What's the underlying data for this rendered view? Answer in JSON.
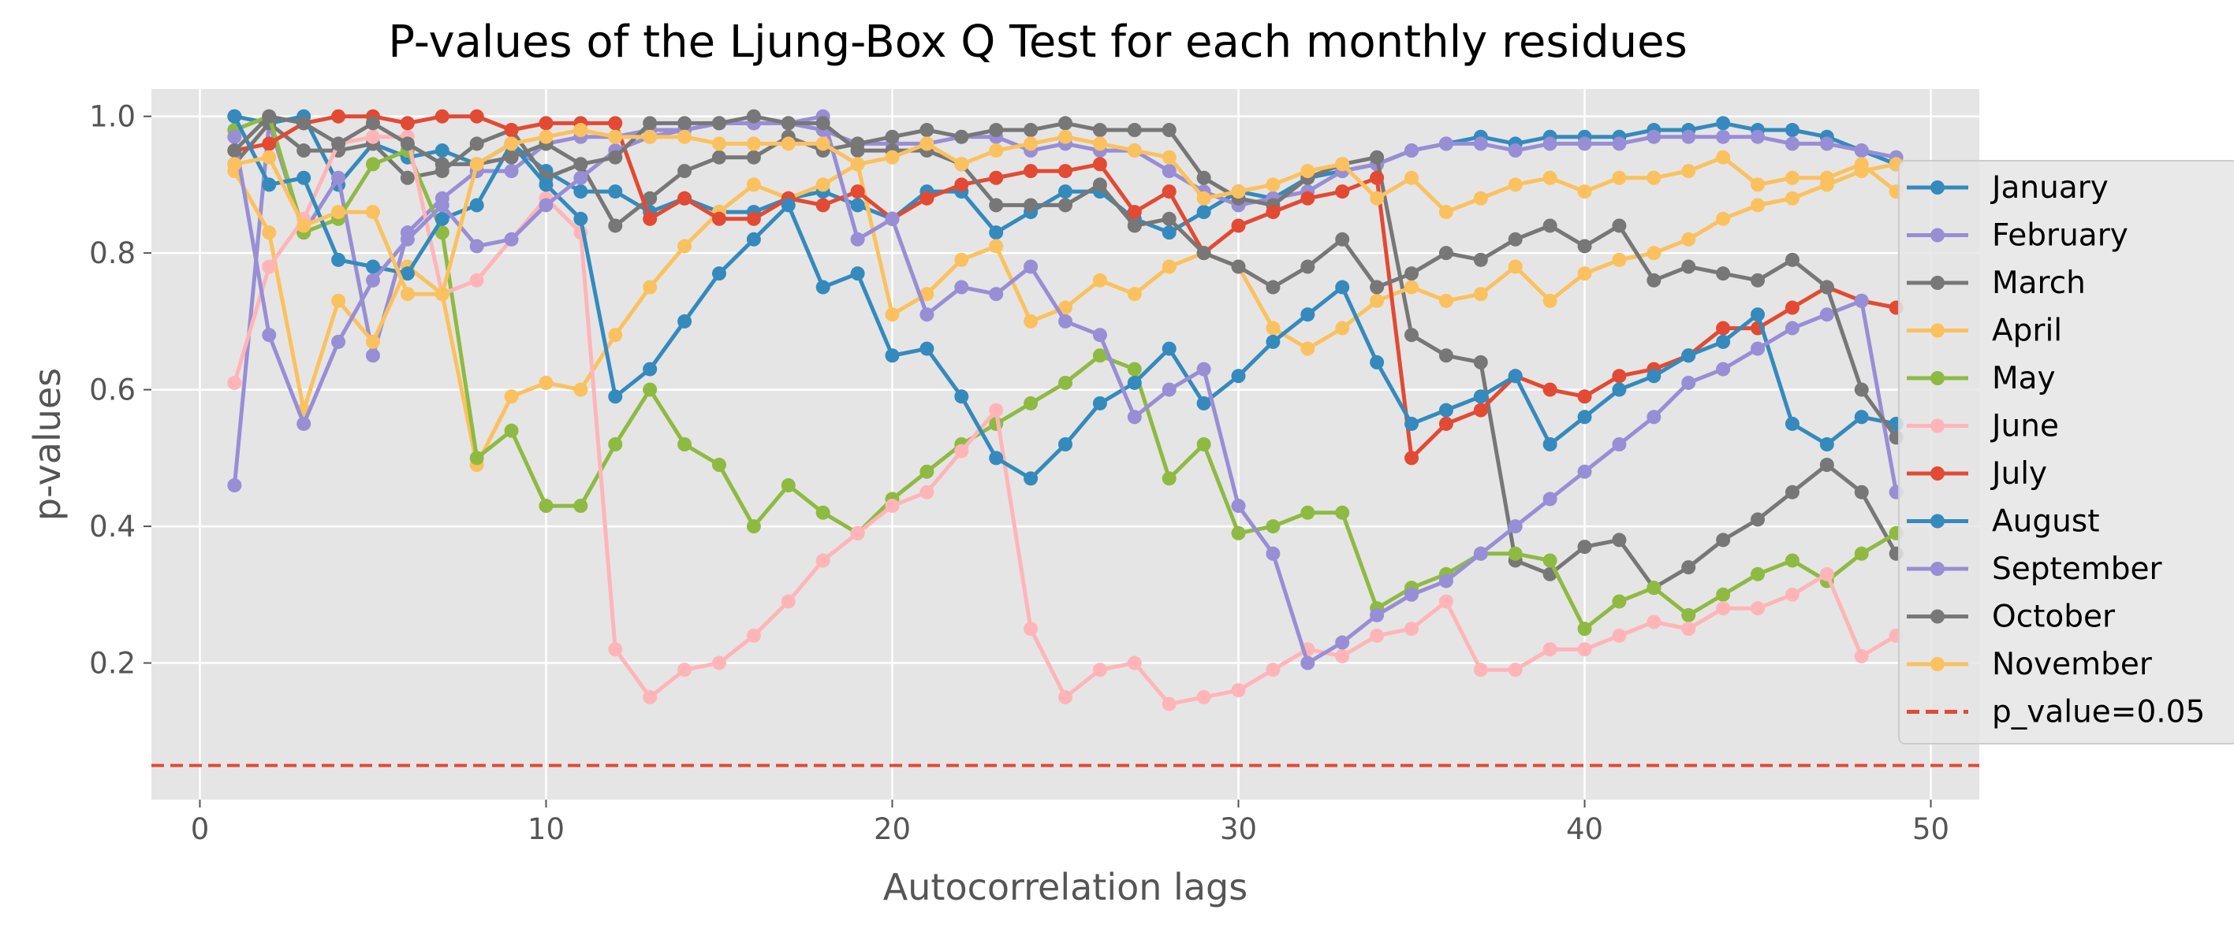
{
  "chart_data": {
    "type": "line",
    "title": "P-values of the Ljung-Box Q Test for each monthly residues",
    "xlabel": "Autocorrelation lags",
    "ylabel": "p-values",
    "xlim": [
      -1.4,
      51.4
    ],
    "ylim": [
      0.0,
      1.04
    ],
    "xticks": [
      0,
      10,
      20,
      30,
      40,
      50
    ],
    "yticks": [
      0.2,
      0.4,
      0.6,
      0.8,
      1.0
    ],
    "ytick_labels": [
      "0.2",
      "0.4",
      "0.6",
      "0.8",
      "1.0"
    ],
    "grid": true,
    "style": "ggplot",
    "legend_position": "center-right",
    "hline": {
      "y": 0.05,
      "label": "p_value=0.05",
      "color": "#E24A33",
      "style": "dashed"
    },
    "series": [
      {
        "name": "January",
        "color": "#348ABD",
        "values": [
          1.0,
          0.99,
          1.0,
          0.9,
          0.96,
          0.94,
          0.95,
          0.93,
          0.96,
          0.92,
          0.89,
          0.89,
          0.86,
          0.88,
          0.86,
          0.86,
          0.88,
          0.89,
          0.87,
          0.85,
          0.89,
          0.89,
          0.83,
          0.86,
          0.89,
          0.89,
          0.85,
          0.83,
          0.86,
          0.89,
          0.88,
          0.91,
          0.92,
          0.93,
          0.95,
          0.96,
          0.97,
          0.96,
          0.97,
          0.97,
          0.97,
          0.98,
          0.98,
          0.99,
          0.98,
          0.98,
          0.97,
          0.95,
          0.93
        ]
      },
      {
        "name": "February",
        "color": "#988ED5",
        "values": [
          0.46,
          0.99,
          0.83,
          0.91,
          0.65,
          0.83,
          0.88,
          0.92,
          0.92,
          0.96,
          0.97,
          0.97,
          0.98,
          0.98,
          0.99,
          0.99,
          0.99,
          0.98,
          0.96,
          0.96,
          0.96,
          0.97,
          0.97,
          0.95,
          0.96,
          0.95,
          0.95,
          0.92,
          0.89,
          0.87,
          0.88,
          0.89,
          0.92,
          0.93,
          0.95,
          0.96,
          0.96,
          0.95,
          0.96,
          0.96,
          0.96,
          0.97,
          0.97,
          0.97,
          0.97,
          0.96,
          0.96,
          0.95,
          0.94
        ]
      },
      {
        "name": "March",
        "color": "#777777",
        "values": [
          0.93,
          0.99,
          0.95,
          0.95,
          0.96,
          0.91,
          0.92,
          0.96,
          0.98,
          0.91,
          0.93,
          0.84,
          0.88,
          0.92,
          0.94,
          0.94,
          0.97,
          0.95,
          0.96,
          0.97,
          0.98,
          0.97,
          0.98,
          0.98,
          0.99,
          0.98,
          0.98,
          0.98,
          0.91,
          0.88,
          0.87,
          0.91,
          0.93,
          0.94,
          0.68,
          0.65,
          0.64,
          0.35,
          0.33,
          0.37,
          0.38,
          0.31,
          0.34,
          0.38,
          0.41,
          0.45,
          0.49,
          0.45,
          0.36
        ]
      },
      {
        "name": "April",
        "color": "#FBC15E",
        "values": [
          0.92,
          0.83,
          0.57,
          0.73,
          0.67,
          0.78,
          0.74,
          0.49,
          0.59,
          0.61,
          0.6,
          0.68,
          0.75,
          0.81,
          0.86,
          0.9,
          0.88,
          0.9,
          0.93,
          0.71,
          0.74,
          0.79,
          0.81,
          0.7,
          0.72,
          0.76,
          0.74,
          0.78,
          0.8,
          0.78,
          0.69,
          0.66,
          0.69,
          0.73,
          0.75,
          0.73,
          0.74,
          0.78,
          0.73,
          0.77,
          0.79,
          0.8,
          0.82,
          0.85,
          0.87,
          0.88,
          0.9,
          0.92,
          0.93
        ]
      },
      {
        "name": "May",
        "color": "#8EBA42",
        "values": [
          0.98,
          1.0,
          0.83,
          0.85,
          0.93,
          0.95,
          0.83,
          0.5,
          0.54,
          0.43,
          0.43,
          0.52,
          0.6,
          0.52,
          0.49,
          0.4,
          0.46,
          0.42,
          0.39,
          0.44,
          0.48,
          0.52,
          0.55,
          0.58,
          0.61,
          0.65,
          0.63,
          0.47,
          0.52,
          0.39,
          0.4,
          0.42,
          0.42,
          0.28,
          0.31,
          0.33,
          0.36,
          0.36,
          0.35,
          0.25,
          0.29,
          0.31,
          0.27,
          0.3,
          0.33,
          0.35,
          0.32,
          0.36,
          0.39
        ]
      },
      {
        "name": "June",
        "color": "#FFB5B8",
        "values": [
          0.61,
          0.78,
          0.85,
          0.96,
          0.97,
          0.97,
          0.74,
          0.76,
          0.82,
          0.88,
          0.83,
          0.22,
          0.15,
          0.19,
          0.2,
          0.24,
          0.29,
          0.35,
          0.39,
          0.43,
          0.45,
          0.51,
          0.57,
          0.25,
          0.15,
          0.19,
          0.2,
          0.14,
          0.15,
          0.16,
          0.19,
          0.22,
          0.21,
          0.24,
          0.25,
          0.29,
          0.19,
          0.19,
          0.22,
          0.22,
          0.24,
          0.26,
          0.25,
          0.28,
          0.28,
          0.3,
          0.33,
          0.21,
          0.24
        ]
      },
      {
        "name": "July",
        "color": "#E24A33",
        "values": [
          0.95,
          0.96,
          0.99,
          1.0,
          1.0,
          0.99,
          1.0,
          1.0,
          0.98,
          0.99,
          0.99,
          0.99,
          0.85,
          0.88,
          0.85,
          0.85,
          0.88,
          0.87,
          0.89,
          0.85,
          0.88,
          0.9,
          0.91,
          0.92,
          0.92,
          0.93,
          0.86,
          0.89,
          0.8,
          0.84,
          0.86,
          0.88,
          0.89,
          0.91,
          0.5,
          0.55,
          0.57,
          0.62,
          0.6,
          0.59,
          0.62,
          0.63,
          0.65,
          0.69,
          0.69,
          0.72,
          0.75,
          0.73,
          0.72
        ]
      },
      {
        "name": "August",
        "color": "#348ABD",
        "values": [
          1.0,
          0.9,
          0.91,
          0.79,
          0.78,
          0.77,
          0.85,
          0.87,
          0.96,
          0.9,
          0.85,
          0.59,
          0.63,
          0.7,
          0.77,
          0.82,
          0.87,
          0.75,
          0.77,
          0.65,
          0.66,
          0.59,
          0.5,
          0.47,
          0.52,
          0.58,
          0.61,
          0.66,
          0.58,
          0.62,
          0.67,
          0.71,
          0.75,
          0.64,
          0.55,
          0.57,
          0.59,
          0.62,
          0.52,
          0.56,
          0.6,
          0.62,
          0.65,
          0.67,
          0.71,
          0.55,
          0.52,
          0.56,
          0.55
        ]
      },
      {
        "name": "September",
        "color": "#988ED5",
        "values": [
          0.97,
          0.68,
          0.55,
          0.67,
          0.76,
          0.82,
          0.87,
          0.81,
          0.82,
          0.87,
          0.91,
          0.95,
          0.97,
          0.98,
          0.99,
          0.99,
          0.99,
          1.0,
          0.82,
          0.85,
          0.71,
          0.75,
          0.74,
          0.78,
          0.7,
          0.68,
          0.56,
          0.6,
          0.63,
          0.43,
          0.36,
          0.2,
          0.23,
          0.27,
          0.3,
          0.32,
          0.36,
          0.4,
          0.44,
          0.48,
          0.52,
          0.56,
          0.61,
          0.63,
          0.66,
          0.69,
          0.71,
          0.73,
          0.45
        ]
      },
      {
        "name": "October",
        "color": "#777777",
        "values": [
          0.95,
          1.0,
          0.99,
          0.96,
          0.99,
          0.96,
          0.93,
          0.93,
          0.94,
          0.96,
          0.93,
          0.94,
          0.99,
          0.99,
          0.99,
          1.0,
          0.99,
          0.99,
          0.95,
          0.95,
          0.95,
          0.93,
          0.87,
          0.87,
          0.87,
          0.9,
          0.84,
          0.85,
          0.8,
          0.78,
          0.75,
          0.78,
          0.82,
          0.75,
          0.77,
          0.8,
          0.79,
          0.82,
          0.84,
          0.81,
          0.84,
          0.76,
          0.78,
          0.77,
          0.76,
          0.79,
          0.75,
          0.6,
          0.53
        ]
      },
      {
        "name": "November",
        "color": "#FBC15E",
        "values": [
          0.93,
          0.94,
          0.84,
          0.86,
          0.86,
          0.74,
          0.74,
          0.93,
          0.96,
          0.97,
          0.98,
          0.97,
          0.97,
          0.97,
          0.96,
          0.96,
          0.96,
          0.96,
          0.93,
          0.94,
          0.96,
          0.93,
          0.95,
          0.96,
          0.97,
          0.96,
          0.95,
          0.94,
          0.88,
          0.89,
          0.9,
          0.92,
          0.93,
          0.88,
          0.91,
          0.86,
          0.88,
          0.9,
          0.91,
          0.89,
          0.91,
          0.91,
          0.92,
          0.94,
          0.9,
          0.91,
          0.91,
          0.93,
          0.89
        ]
      }
    ]
  }
}
